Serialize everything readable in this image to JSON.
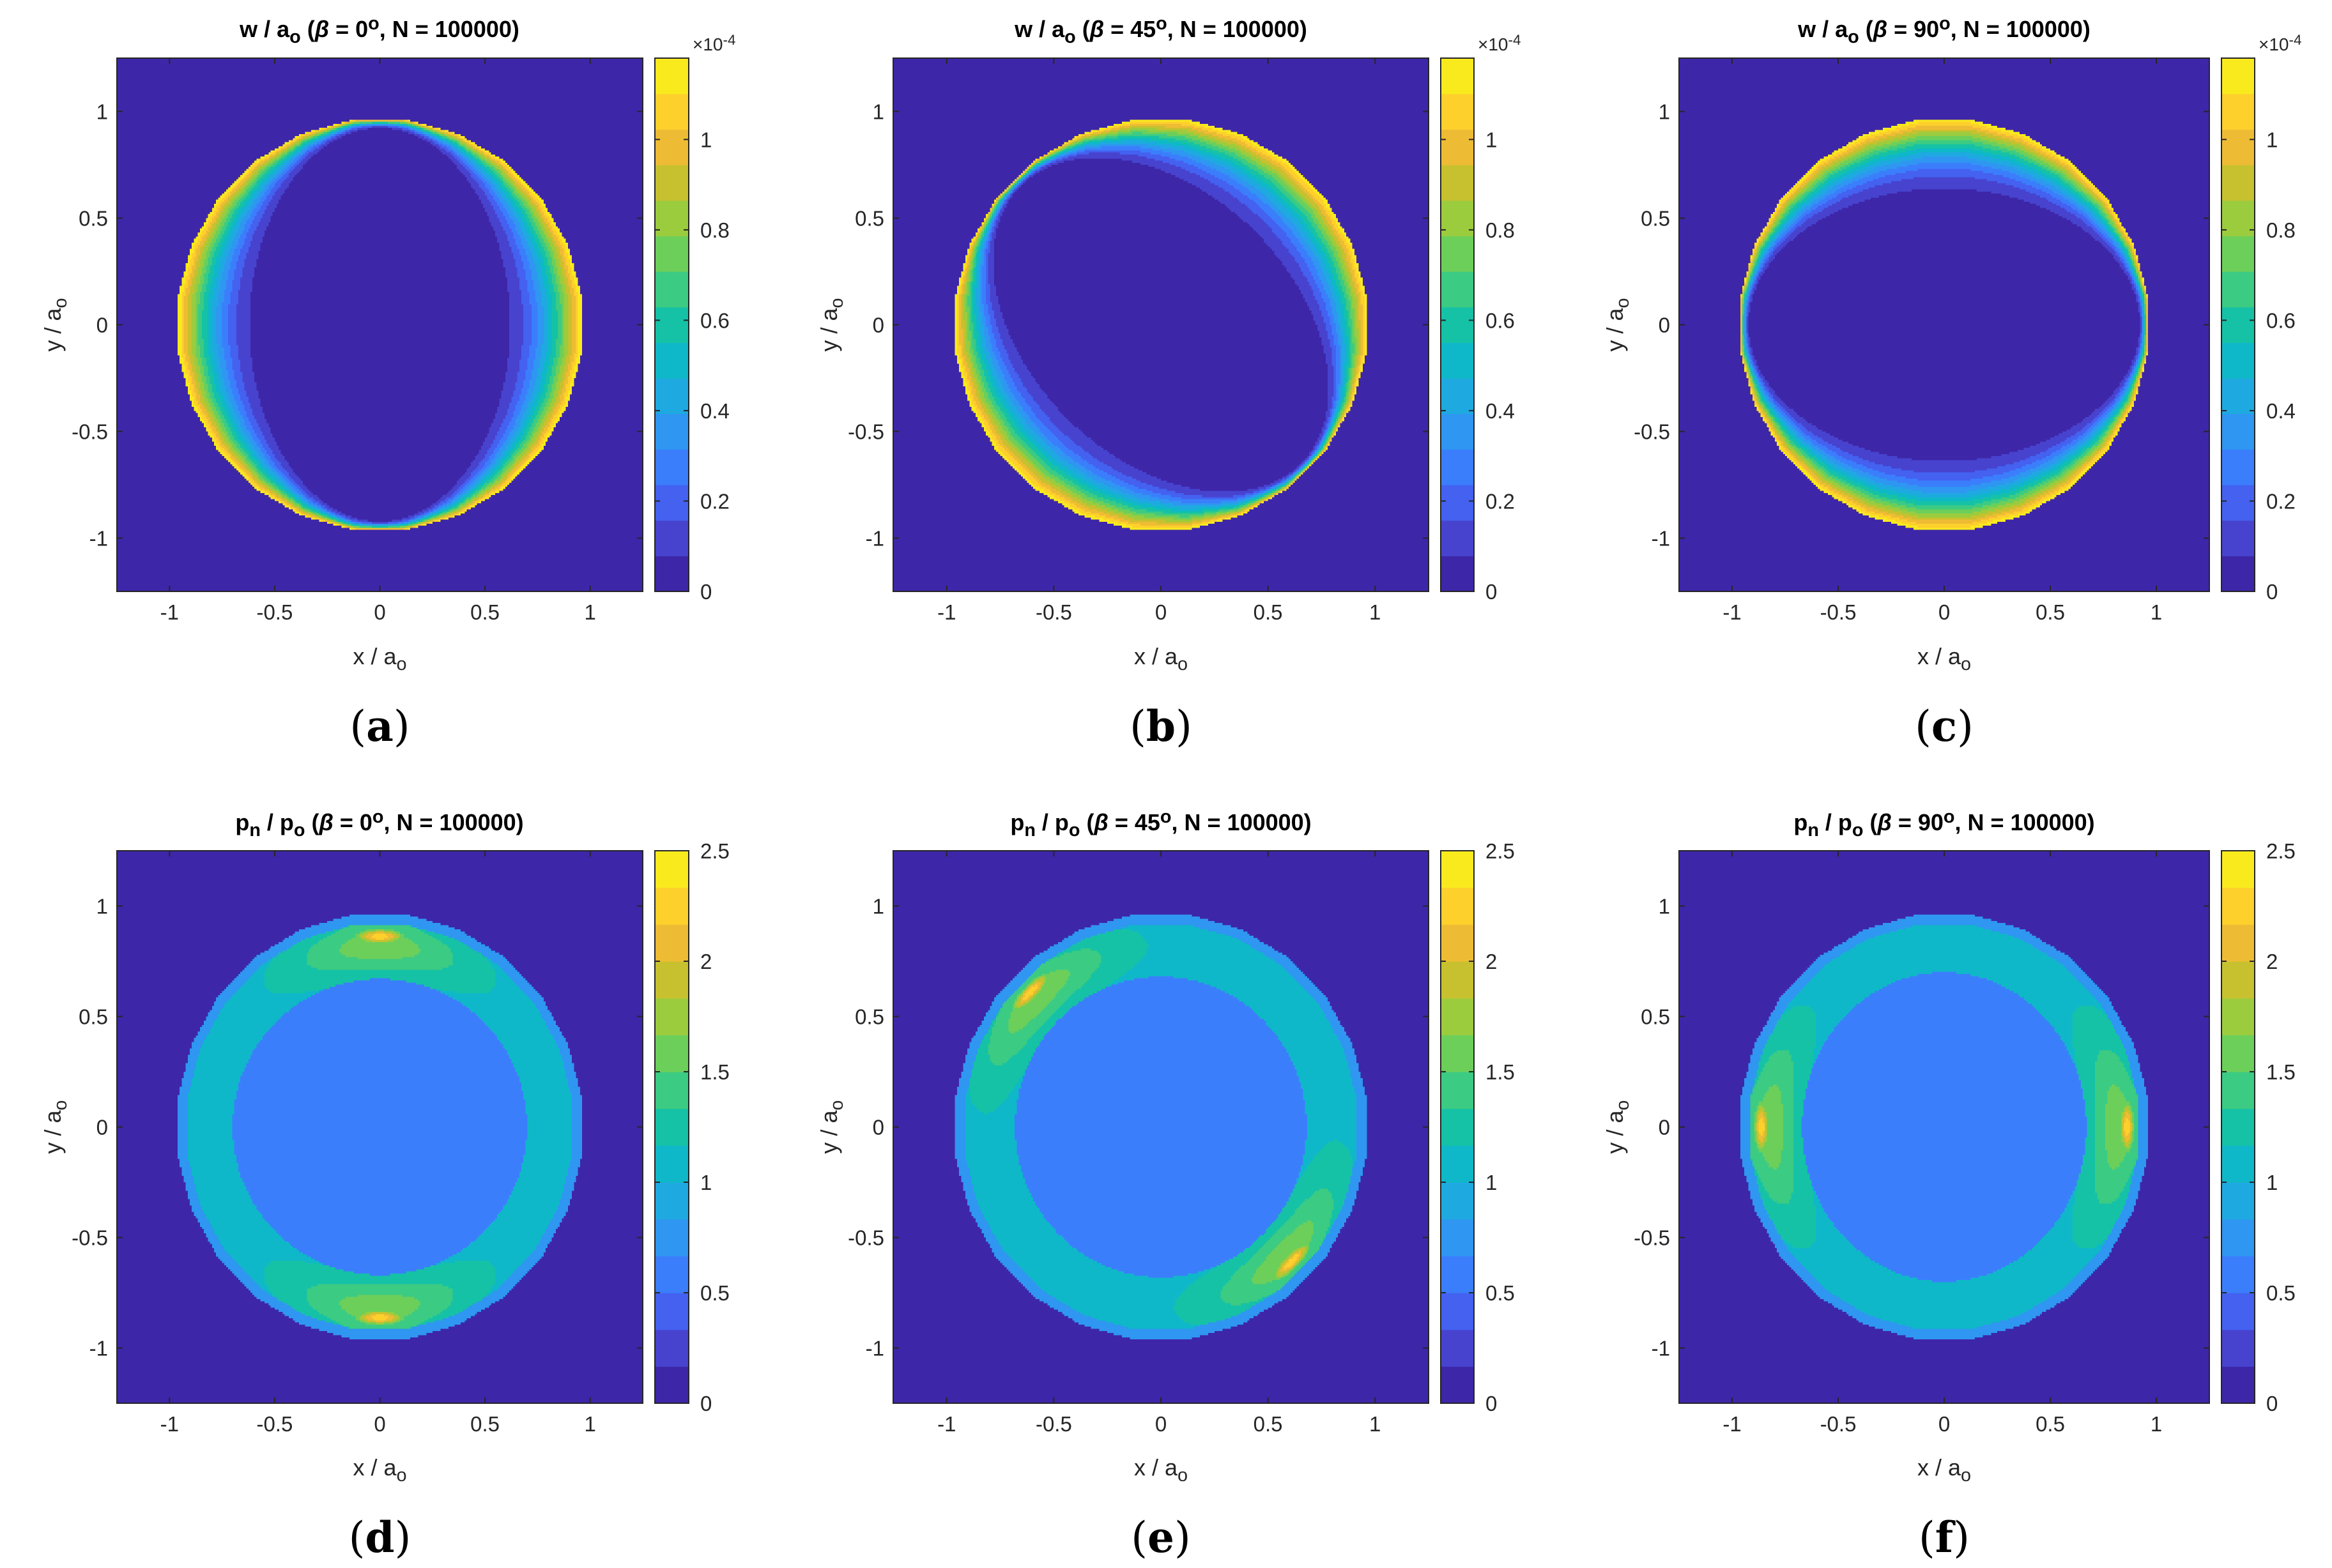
{
  "figure": {
    "colormap": [
      "#3e26a8",
      "#4743ce",
      "#4461f0",
      "#3b7efc",
      "#2f96f1",
      "#1fa9e1",
      "#0fb8c8",
      "#15c2a6",
      "#3ccb83",
      "#6ccf5a",
      "#9bcc3e",
      "#c7c12f",
      "#eebc34",
      "#fdd02c",
      "#f9ea1e"
    ],
    "background_color": "#3e26a8"
  },
  "chart_data": [
    {
      "id": "a",
      "type": "heatmap",
      "quantity": "w",
      "title_parts": [
        "w / a",
        "o",
        " (",
        "β",
        " = 0",
        "o",
        ", N = 100000)"
      ],
      "beta_deg": 0,
      "N": 100000,
      "xlabel_parts": [
        "x / a",
        "o"
      ],
      "ylabel_parts": [
        "y / a",
        "o"
      ],
      "xlim": [
        -1.25,
        1.25
      ],
      "ylim": [
        -1.25,
        1.25
      ],
      "xticks": [
        -1,
        -0.5,
        0,
        0.5,
        1
      ],
      "xtick_labels": [
        "-1",
        "-0.5",
        "0",
        "0.5",
        "1"
      ],
      "yticks": [
        -1,
        -0.5,
        0,
        0.5,
        1
      ],
      "ytick_labels": [
        "-1",
        "-0.5",
        "0",
        "0.5",
        "1"
      ],
      "colorbar": {
        "min": 0,
        "max": 1.18,
        "ticks": [
          0,
          0.2,
          0.4,
          0.6,
          0.8,
          1
        ],
        "tick_labels": [
          "0",
          "0.2",
          "0.4",
          "0.6",
          "0.8",
          "1"
        ],
        "exponent_parts": [
          "×10",
          "-4"
        ]
      },
      "contact_radius": 0.97,
      "inner_ellipse": {
        "semi_x": 0.6,
        "semi_y": 0.92,
        "rotation_deg": 0
      },
      "field": "w = 0 inside inner ellipse, rises to max 1.18e-4 at contact boundary (radius 0.97)",
      "panel_label": "(a)"
    },
    {
      "id": "b",
      "type": "heatmap",
      "quantity": "w",
      "title_parts": [
        "w / a",
        "o",
        " (",
        "β",
        " = 45",
        "o",
        ", N = 100000)"
      ],
      "beta_deg": 45,
      "N": 100000,
      "xlabel_parts": [
        "x / a",
        "o"
      ],
      "ylabel_parts": [
        "y / a",
        "o"
      ],
      "xlim": [
        -1.25,
        1.25
      ],
      "ylim": [
        -1.25,
        1.25
      ],
      "xticks": [
        -1,
        -0.5,
        0,
        0.5,
        1
      ],
      "xtick_labels": [
        "-1",
        "-0.5",
        "0",
        "0.5",
        "1"
      ],
      "yticks": [
        -1,
        -0.5,
        0,
        0.5,
        1
      ],
      "ytick_labels": [
        "-1",
        "-0.5",
        "0",
        "0.5",
        "1"
      ],
      "colorbar": {
        "min": 0,
        "max": 1.18,
        "ticks": [
          0,
          0.2,
          0.4,
          0.6,
          0.8,
          1
        ],
        "tick_labels": [
          "0",
          "0.2",
          "0.4",
          "0.6",
          "0.8",
          "1"
        ],
        "exponent_parts": [
          "×10",
          "-4"
        ]
      },
      "contact_radius": 0.97,
      "inner_ellipse": {
        "semi_x": 0.6,
        "semi_y": 0.92,
        "rotation_deg": 45
      },
      "field": "w = 0 inside rotated inner ellipse, rises to max 1.18e-4 at contact boundary (radius 0.97)",
      "panel_label": "(b)"
    },
    {
      "id": "c",
      "type": "heatmap",
      "quantity": "w",
      "title_parts": [
        "w / a",
        "o",
        " (",
        "β",
        " = 90",
        "o",
        ", N = 100000)"
      ],
      "beta_deg": 90,
      "N": 100000,
      "xlabel_parts": [
        "x / a",
        "o"
      ],
      "ylabel_parts": [
        "y / a",
        "o"
      ],
      "xlim": [
        -1.25,
        1.25
      ],
      "ylim": [
        -1.25,
        1.25
      ],
      "xticks": [
        -1,
        -0.5,
        0,
        0.5,
        1
      ],
      "xtick_labels": [
        "-1",
        "-0.5",
        "0",
        "0.5",
        "1"
      ],
      "yticks": [
        -1,
        -0.5,
        0,
        0.5,
        1
      ],
      "ytick_labels": [
        "-1",
        "-0.5",
        "0",
        "0.5",
        "1"
      ],
      "colorbar": {
        "min": 0,
        "max": 1.18,
        "ticks": [
          0,
          0.2,
          0.4,
          0.6,
          0.8,
          1
        ],
        "tick_labels": [
          "0",
          "0.2",
          "0.4",
          "0.6",
          "0.8",
          "1"
        ],
        "exponent_parts": [
          "×10",
          "-4"
        ]
      },
      "contact_radius": 0.97,
      "inner_ellipse": {
        "semi_x": 0.92,
        "semi_y": 0.62,
        "rotation_deg": 0
      },
      "field": "w = 0 inside inner ellipse, rises to max 1.18e-4 at contact boundary (radius 0.97)",
      "panel_label": "(c)"
    },
    {
      "id": "d",
      "type": "heatmap",
      "quantity": "pn",
      "title_parts": [
        "p",
        "n",
        " / p",
        "o",
        " (",
        "β",
        " = 0",
        "o",
        ", N = 100000)"
      ],
      "beta_deg": 0,
      "N": 100000,
      "xlabel_parts": [
        "x / a",
        "o"
      ],
      "ylabel_parts": [
        "y / a",
        "o"
      ],
      "xlim": [
        -1.25,
        1.25
      ],
      "ylim": [
        -1.25,
        1.25
      ],
      "xticks": [
        -1,
        -0.5,
        0,
        0.5,
        1
      ],
      "xtick_labels": [
        "-1",
        "-0.5",
        "0",
        "0.5",
        "1"
      ],
      "yticks": [
        -1,
        -0.5,
        0,
        0.5,
        1
      ],
      "ytick_labels": [
        "-1",
        "-0.5",
        "0",
        "0.5",
        "1"
      ],
      "colorbar": {
        "min": 0,
        "max": 2.5,
        "ticks": [
          0,
          0.5,
          1,
          1.5,
          2,
          2.5
        ],
        "tick_labels": [
          "0",
          "0.5",
          "1",
          "1.5",
          "2",
          "2.5"
        ],
        "exponent_parts": null
      },
      "contact_radius": 0.97,
      "inner_pressure": 0.6,
      "ring_pressure": 1.1,
      "inner_ellipse": {
        "semi_x": 0.7,
        "semi_y": 0.67,
        "rotation_deg": 0
      },
      "peak_direction_deg": 90,
      "peak_value": 2.3,
      "field": "p_n ≈ 0.6 in central region, ≈ 1.1 in outer ring, peaks ≈ 2.3 near y = ±0.88",
      "panel_label": "(d)"
    },
    {
      "id": "e",
      "type": "heatmap",
      "quantity": "pn",
      "title_parts": [
        "p",
        "n",
        " / p",
        "o",
        " (",
        "β",
        " = 45",
        "o",
        ", N = 100000)"
      ],
      "beta_deg": 45,
      "N": 100000,
      "xlabel_parts": [
        "x / a",
        "o"
      ],
      "ylabel_parts": [
        "y / a",
        "o"
      ],
      "xlim": [
        -1.25,
        1.25
      ],
      "ylim": [
        -1.25,
        1.25
      ],
      "xticks": [
        -1,
        -0.5,
        0,
        0.5,
        1
      ],
      "xtick_labels": [
        "-1",
        "-0.5",
        "0",
        "0.5",
        "1"
      ],
      "yticks": [
        -1,
        -0.5,
        0,
        0.5,
        1
      ],
      "ytick_labels": [
        "-1",
        "-0.5",
        "0",
        "0.5",
        "1"
      ],
      "colorbar": {
        "min": 0,
        "max": 2.5,
        "ticks": [
          0,
          0.5,
          1,
          1.5,
          2,
          2.5
        ],
        "tick_labels": [
          "0",
          "0.5",
          "1",
          "1.5",
          "2",
          "2.5"
        ],
        "exponent_parts": null
      },
      "contact_radius": 0.97,
      "inner_pressure": 0.6,
      "ring_pressure": 1.1,
      "inner_ellipse": {
        "semi_x": 0.68,
        "semi_y": 0.68,
        "rotation_deg": 0
      },
      "peak_direction_deg": 135,
      "peak_value": 2.3,
      "field": "p_n ≈ 0.6 in central region, ≈ 1.1 in outer ring, peaks ≈ 2.3 along the 135° diagonal",
      "panel_label": "(e)"
    },
    {
      "id": "f",
      "type": "heatmap",
      "quantity": "pn",
      "title_parts": [
        "p",
        "n",
        " / p",
        "o",
        " (",
        "β",
        " = 90",
        "o",
        ", N = 100000)"
      ],
      "beta_deg": 90,
      "N": 100000,
      "xlabel_parts": [
        "x / a",
        "o"
      ],
      "ylabel_parts": [
        "y / a",
        "o"
      ],
      "xlim": [
        -1.25,
        1.25
      ],
      "ylim": [
        -1.25,
        1.25
      ],
      "xticks": [
        -1,
        -0.5,
        0,
        0.5,
        1
      ],
      "xtick_labels": [
        "-1",
        "-0.5",
        "0",
        "0.5",
        "1"
      ],
      "yticks": [
        -1,
        -0.5,
        0,
        0.5,
        1
      ],
      "ytick_labels": [
        "-1",
        "-0.5",
        "0",
        "0.5",
        "1"
      ],
      "colorbar": {
        "min": 0,
        "max": 2.5,
        "ticks": [
          0,
          0.5,
          1,
          1.5,
          2,
          2.5
        ],
        "tick_labels": [
          "0",
          "0.5",
          "1",
          "1.5",
          "2",
          "2.5"
        ],
        "exponent_parts": null
      },
      "contact_radius": 0.97,
      "inner_pressure": 0.6,
      "ring_pressure": 1.1,
      "inner_ellipse": {
        "semi_x": 0.67,
        "semi_y": 0.7,
        "rotation_deg": 0
      },
      "peak_direction_deg": 0,
      "peak_value": 2.3,
      "field": "p_n ≈ 0.6 in central region, ≈ 1.1 in outer ring, peaks ≈ 2.3 near x = ±0.88",
      "panel_label": "(f)"
    }
  ]
}
